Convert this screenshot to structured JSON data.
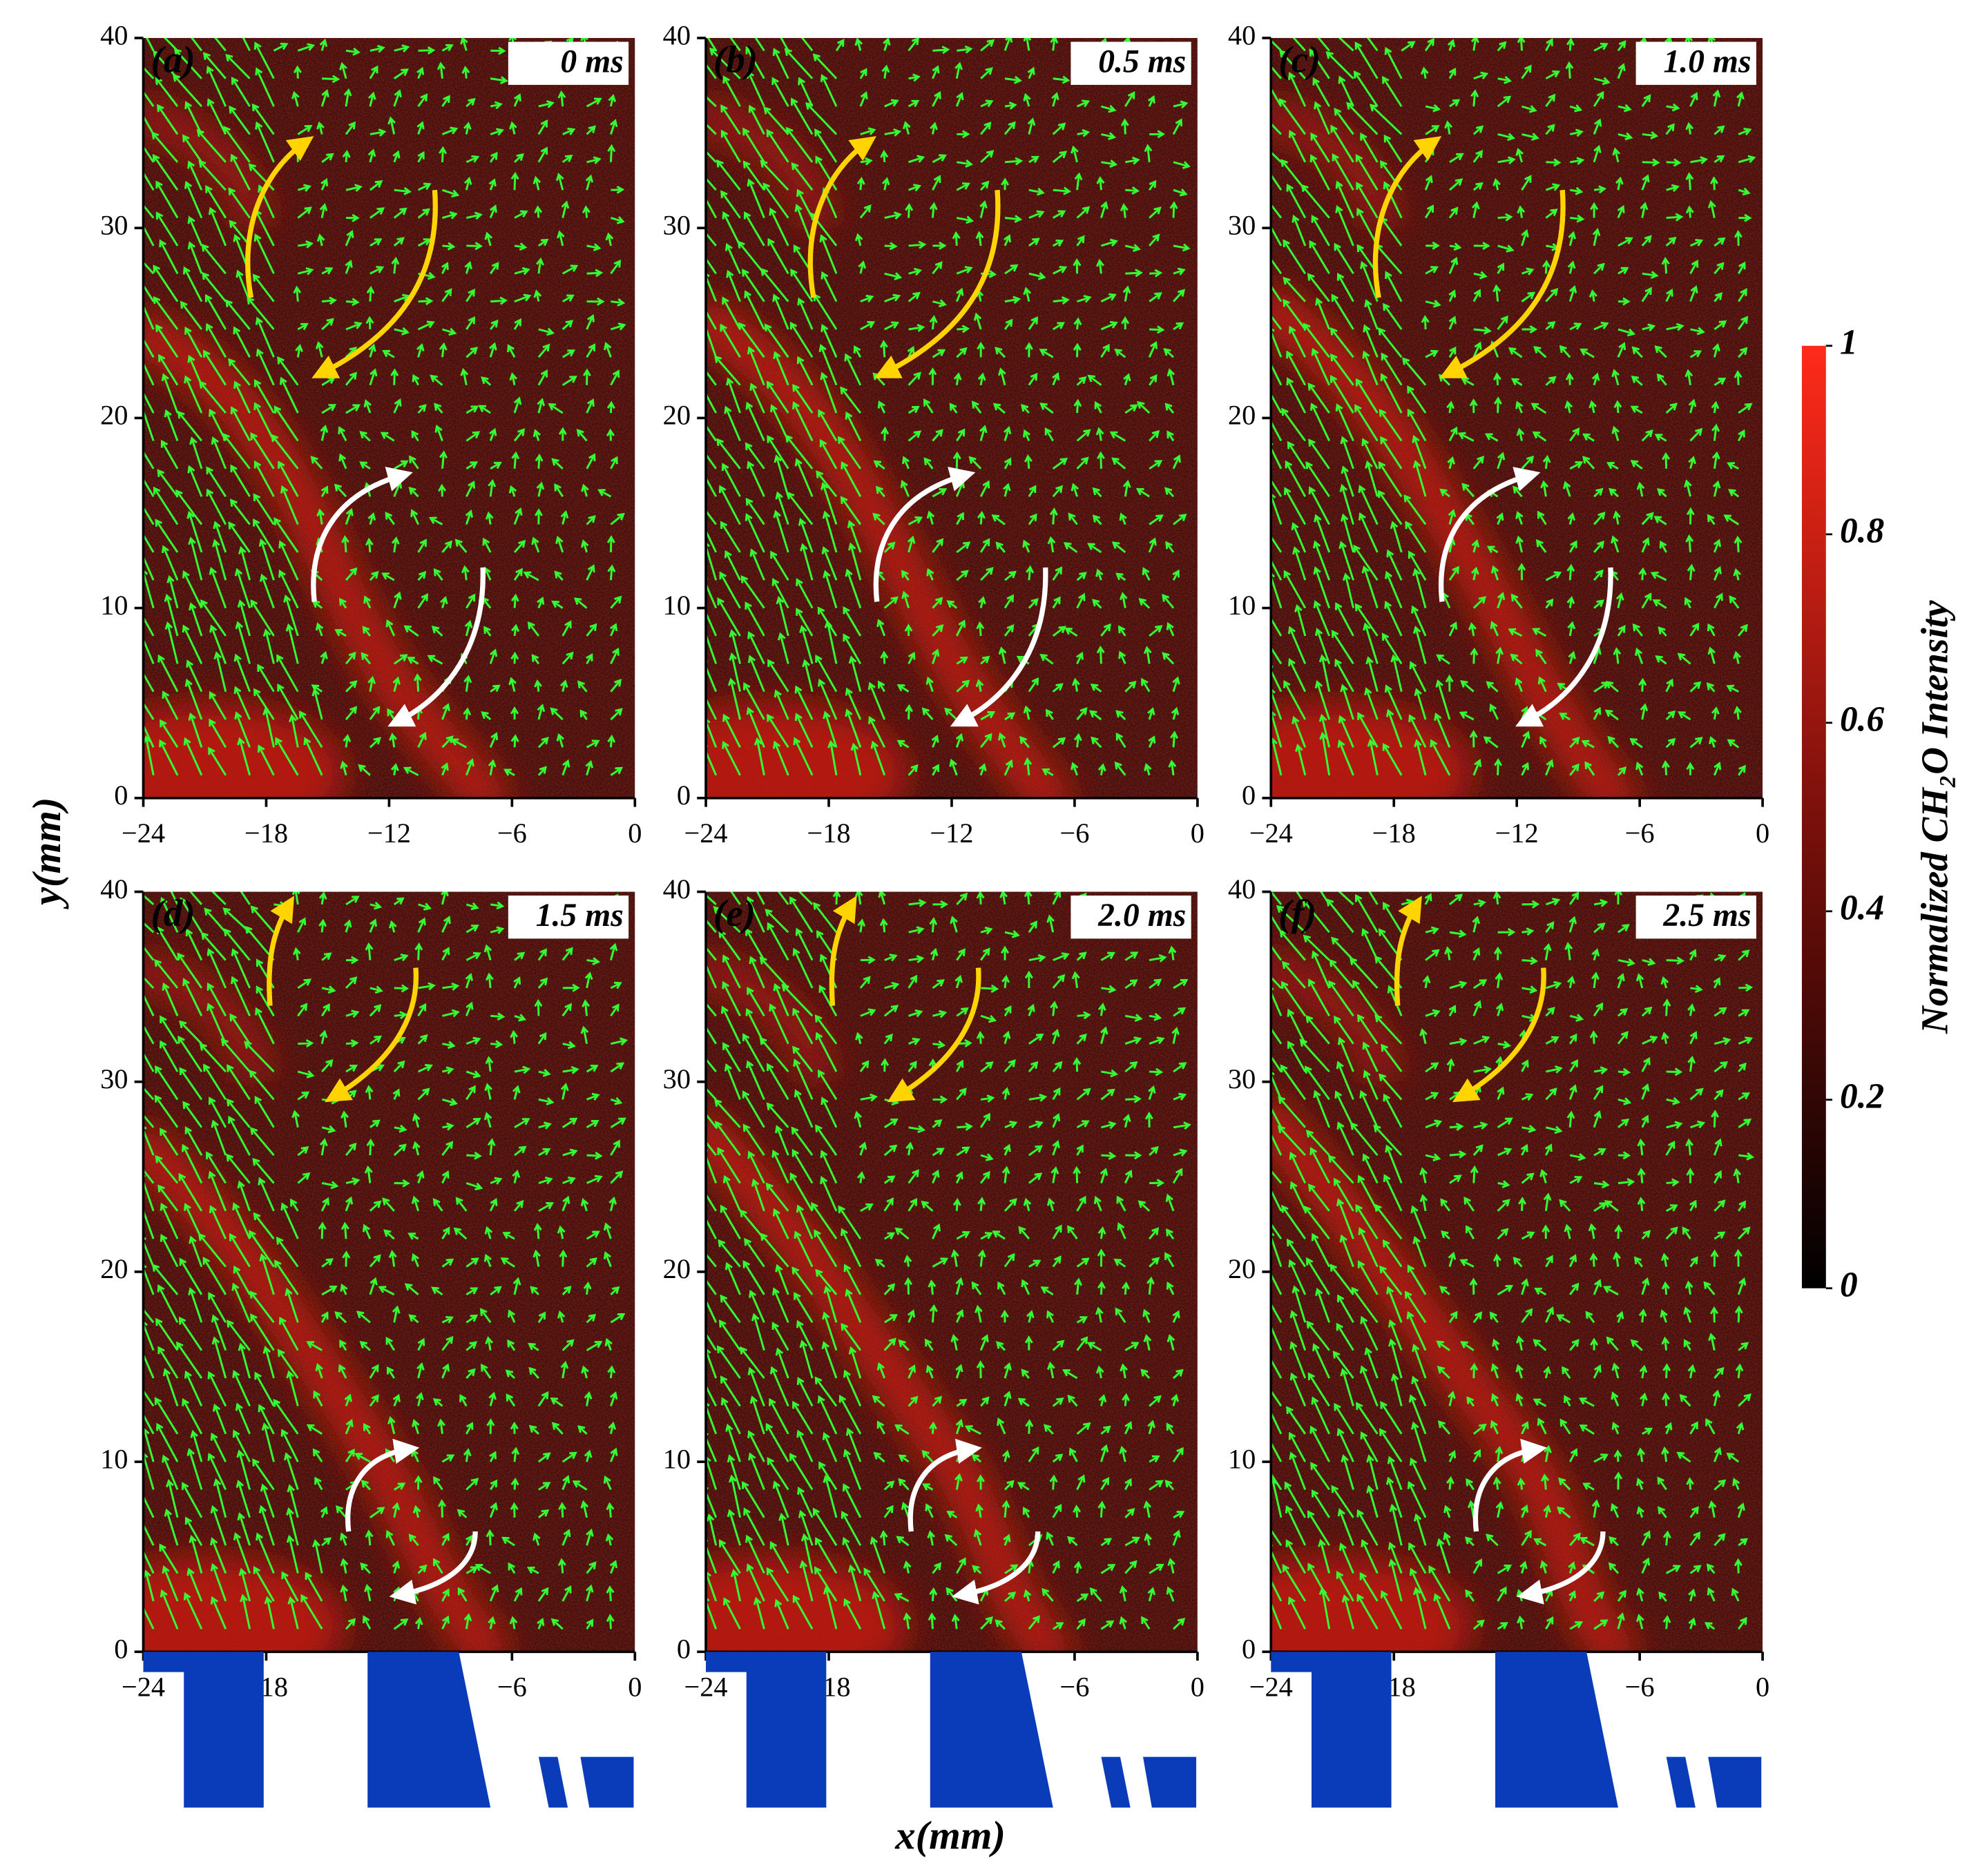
{
  "panels": [
    {
      "label": "(a)",
      "time": "0 ms"
    },
    {
      "label": "(b)",
      "time": "0.5 ms"
    },
    {
      "label": "(c)",
      "time": "1.0 ms"
    },
    {
      "label": "(d)",
      "time": "1.5 ms"
    },
    {
      "label": "(e)",
      "time": "2.0 ms"
    },
    {
      "label": "(f)",
      "time": "2.5 ms"
    }
  ],
  "axes": {
    "xlim": [
      -24,
      0
    ],
    "ylim": [
      0,
      40
    ],
    "xticks": [
      {
        "value": -24,
        "label": "−24"
      },
      {
        "value": -18,
        "label": "−18"
      },
      {
        "value": -12,
        "label": "−12"
      },
      {
        "value": -6,
        "label": "−6"
      },
      0
    ],
    "yticks": [
      0,
      10,
      20,
      30,
      40
    ],
    "xlabel": "x(mm)",
    "ylabel": "y(mm)"
  },
  "colorbar": {
    "label": "Normalized CH₂O Intensity",
    "lim": [
      0,
      1
    ],
    "ticks": [
      0,
      0.2,
      0.4,
      0.6,
      0.8,
      1
    ]
  }
}
